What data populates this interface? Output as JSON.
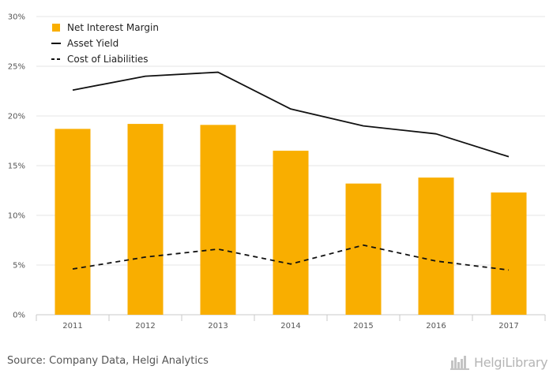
{
  "chart_data": {
    "type": "bar",
    "title": "",
    "xlabel": "",
    "ylabel": "",
    "categories": [
      "2011",
      "2012",
      "2013",
      "2014",
      "2015",
      "2016",
      "2017"
    ],
    "y_ticks": [
      "0%",
      "5%",
      "10%",
      "15%",
      "20%",
      "25%",
      "30%"
    ],
    "ylim": [
      0,
      30
    ],
    "grid": true,
    "legend_position": "top-left",
    "series": [
      {
        "name": "Net Interest Margin",
        "kind": "bar",
        "color": "#F9AE00",
        "values": [
          18.7,
          19.2,
          19.1,
          16.5,
          13.2,
          13.8,
          12.3
        ]
      },
      {
        "name": "Asset Yield",
        "kind": "line",
        "style": "solid",
        "color": "#111111",
        "values": [
          22.6,
          24.0,
          24.4,
          20.7,
          19.0,
          18.2,
          15.9
        ]
      },
      {
        "name": "Cost of Liabilities",
        "kind": "line",
        "style": "dashed",
        "color": "#111111",
        "values": [
          4.6,
          5.8,
          6.6,
          5.1,
          7.0,
          5.4,
          4.5
        ]
      }
    ]
  },
  "footer": {
    "source": "Source: Company Data, Helgi Analytics",
    "brand_name": "HelgiLibrary",
    "brand_icon": "helgi-library-logo-icon"
  }
}
